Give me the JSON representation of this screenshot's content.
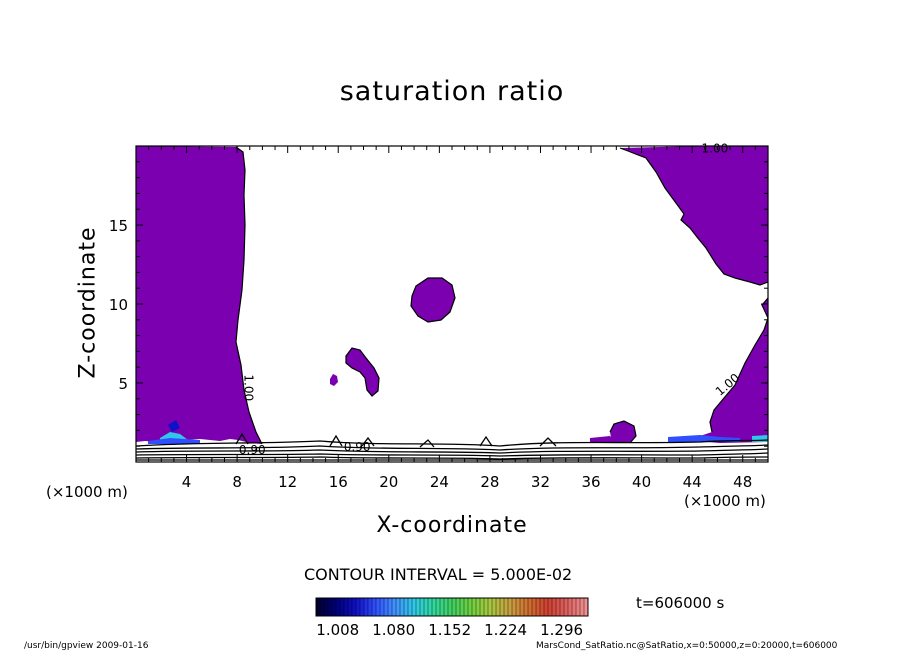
{
  "chart_data": {
    "type": "heatmap",
    "title": "saturation ratio",
    "xlabel": "X-coordinate",
    "ylabel": "Z-coordinate",
    "x_unit": "(×1000 m)",
    "y_unit": "(×1000 m)",
    "xlim": [
      0,
      50
    ],
    "ylim": [
      0,
      20
    ],
    "x_ticks": [
      4,
      8,
      12,
      16,
      20,
      24,
      28,
      32,
      36,
      40,
      44,
      48
    ],
    "y_ticks": [
      5,
      10,
      15
    ],
    "contour_interval_text": "CONTOUR INTERVAL = 5.000E-02",
    "contour_labels": [
      {
        "text": "1.00",
        "x": 45.8,
        "y": 19.6
      },
      {
        "text": "1.00",
        "x": 8.6,
        "y": 4.7
      },
      {
        "text": "1.00",
        "x": 47.0,
        "y": 4.7
      },
      {
        "text": "0.90",
        "x": 9.2,
        "y": 0.5
      },
      {
        "text": "0.90",
        "x": 17.5,
        "y": 0.7
      }
    ],
    "colorbar": {
      "ticks": [
        "1.008",
        "1.080",
        "1.152",
        "1.224",
        "1.296"
      ],
      "min": 0.98,
      "max": 1.33,
      "colors": [
        "#000033",
        "#000080",
        "#1010c8",
        "#3050ff",
        "#4090ff",
        "#30c8e8",
        "#30d8a0",
        "#40d060",
        "#70d040",
        "#a8c840",
        "#c8a040",
        "#d07030",
        "#d04030",
        "#e06060",
        "#f09090"
      ]
    },
    "fill_color": "#7a00b0",
    "time_label": "t=606000 s"
  },
  "footer": {
    "left": "/usr/bin/gpview   2009-01-16",
    "right": "MarsCond_SatRatio.nc@SatRatio,x=0:50000,z=0:20000,t=606000"
  }
}
